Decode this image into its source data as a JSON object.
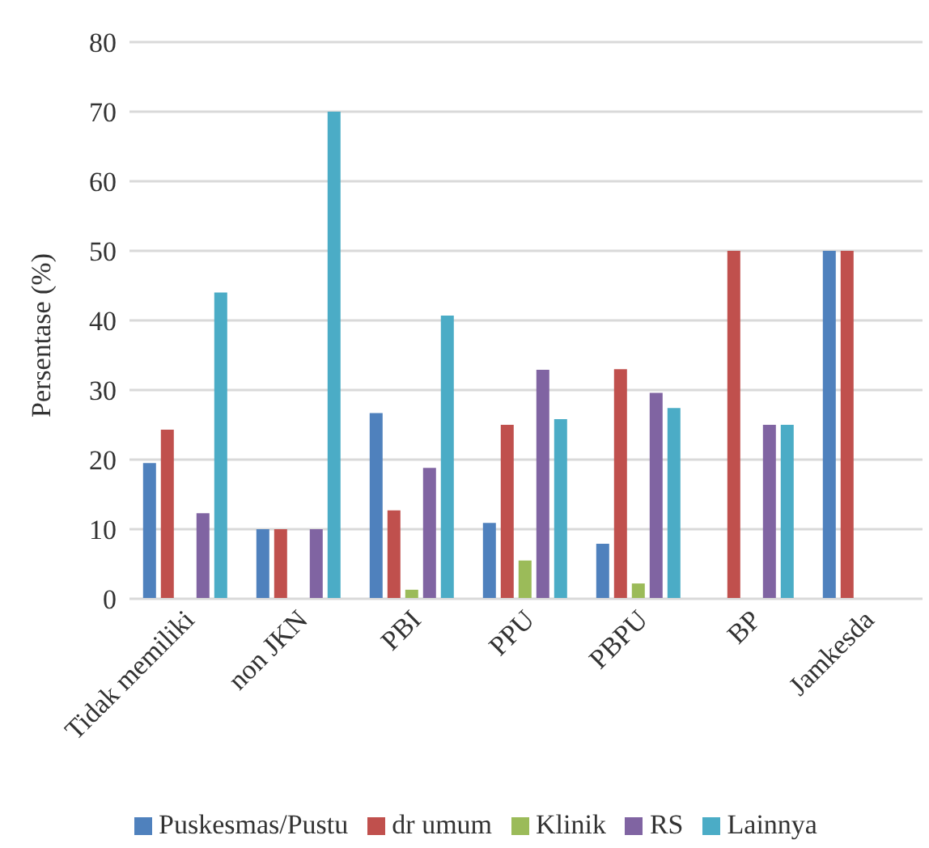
{
  "chart_data": {
    "type": "bar",
    "ylabel": "Persentase (%)",
    "categories": [
      "Tidak memiliki",
      "non JKN",
      "PBI",
      "PPU",
      "PBPU",
      "BP",
      "Jamkesda"
    ],
    "series": [
      {
        "name": "Puskesmas/Pustu",
        "color": "#4f81bd",
        "values": [
          19.5,
          10,
          26.7,
          10.9,
          7.9,
          0,
          50
        ]
      },
      {
        "name": "dr umum",
        "color": "#c0504d",
        "values": [
          24.3,
          10,
          12.7,
          25,
          33,
          50,
          50
        ]
      },
      {
        "name": "Klinik",
        "color": "#9bbb59",
        "values": [
          0,
          0,
          1.3,
          5.5,
          2.2,
          0,
          0
        ]
      },
      {
        "name": "RS",
        "color": "#8064a2",
        "values": [
          12.3,
          10,
          18.8,
          32.9,
          29.6,
          25,
          0
        ]
      },
      {
        "name": "Lainnya",
        "color": "#4bacc6",
        "values": [
          44,
          70,
          40.7,
          25.8,
          27.4,
          25,
          0
        ]
      }
    ],
    "ylim": [
      0,
      80
    ],
    "yticks": [
      0,
      10,
      20,
      30,
      40,
      50,
      60,
      70,
      80
    ],
    "grid": "y",
    "legend": "bottom"
  }
}
